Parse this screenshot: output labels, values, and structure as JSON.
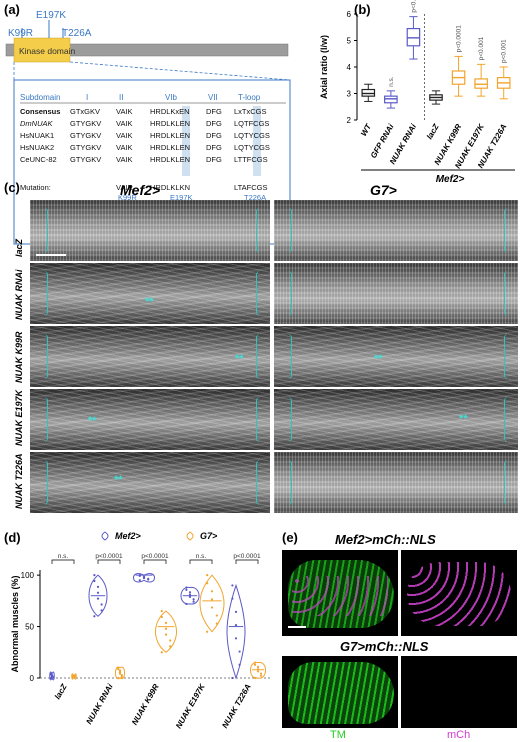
{
  "panels": {
    "a": "(a)",
    "b": "(b)",
    "c": "(c)",
    "d": "(d)",
    "e": "(e)"
  },
  "panel_a": {
    "mutations_top": [
      "E197K"
    ],
    "mutations_left": [
      "K99R"
    ],
    "mutations_right": [
      "T226A"
    ],
    "domain_label": "Kinase domain",
    "headers": [
      "Subdomain",
      "I",
      "II",
      "VIb",
      "VII",
      "T-loop"
    ],
    "rows": [
      {
        "name": "Consensus",
        "seq": [
          "GTxGKV",
          "VAIK",
          "HRDLKxEN",
          "DFG",
          "LxTxCGS"
        ]
      },
      {
        "name": "DmNUAK",
        "seq": [
          "GTYGKV",
          "VAIK",
          "HRDLKLEN",
          "DFG",
          "LQTFCGS"
        ]
      },
      {
        "name": "HsNUAK1",
        "seq": [
          "GTYGKV",
          "VAIK",
          "HRDLKLEN",
          "DFG",
          "LQTYCGS"
        ]
      },
      {
        "name": "HsNUAK2",
        "seq": [
          "GTYGKV",
          "VAIK",
          "HRDLKLEN",
          "DFG",
          "LQTYCGS"
        ]
      },
      {
        "name": "CeUNC-82",
        "seq": [
          "GTYGKV",
          "VAIK",
          "HRDLKLEN",
          "DFG",
          "LTTFCGS"
        ]
      }
    ],
    "mutation_row": {
      "name": "Mutation:",
      "seq": [
        "VAIR",
        "HRDLKLKN",
        "LTAFCGS"
      ]
    },
    "mutation_sublabels": [
      "K99R",
      "E197K",
      "T226A"
    ]
  },
  "chart_data": [
    {
      "type": "box",
      "panel": "b",
      "ylabel": "Axial ratio (l/w)",
      "ylim": [
        2,
        6
      ],
      "yticks": [
        2,
        3,
        4,
        5,
        6
      ],
      "group_label": "Mef2>",
      "categories": [
        "WT",
        "GFP RNAi",
        "NUAK RNAi",
        "lacZ",
        "NUAK K99R",
        "NUAK E197K",
        "NUAK T226A"
      ],
      "colors": [
        "#222222",
        "#5a5ac8",
        "#5a5ac8",
        "#222222",
        "#f2a42c",
        "#f2a42c",
        "#f2a42c"
      ],
      "annotations": [
        "",
        "n.s.",
        "p<0.0001",
        "",
        "p<0.0001",
        "p<0.001",
        "p<0.001"
      ],
      "boxes": [
        {
          "min": 2.7,
          "q1": 2.9,
          "median": 3.0,
          "q3": 3.15,
          "max": 3.35
        },
        {
          "min": 2.45,
          "q1": 2.65,
          "median": 2.8,
          "q3": 2.9,
          "max": 3.1
        },
        {
          "min": 4.3,
          "q1": 4.8,
          "median": 5.1,
          "q3": 5.45,
          "max": 5.9
        },
        {
          "min": 2.6,
          "q1": 2.75,
          "median": 2.85,
          "q3": 2.95,
          "max": 3.1
        },
        {
          "min": 2.9,
          "q1": 3.35,
          "median": 3.6,
          "q3": 3.85,
          "max": 4.4
        },
        {
          "min": 2.9,
          "q1": 3.2,
          "median": 3.35,
          "q3": 3.55,
          "max": 4.1
        },
        {
          "min": 2.8,
          "q1": 3.2,
          "median": 3.4,
          "q3": 3.6,
          "max": 4.0
        }
      ]
    },
    {
      "type": "violin",
      "panel": "d",
      "ylabel": "Abnormal muscles (%)",
      "ylim": [
        0,
        105
      ],
      "yticks": [
        0,
        50,
        100
      ],
      "categories": [
        "lacZ",
        "NUAK RNAi",
        "NUAK K99R",
        "NUAK E197K",
        "NUAK T226A"
      ],
      "series": [
        {
          "name": "Mef2>",
          "color": "#5a5ac8",
          "medians": [
            0,
            80,
            100,
            80,
            50
          ]
        },
        {
          "name": "G7>",
          "color": "#f2a42c",
          "medians": [
            0,
            0,
            50,
            75,
            8
          ]
        }
      ],
      "annotations": [
        "n.s.",
        "p<0.0001",
        "p<0.0001",
        "n.s.",
        "p<0.0001"
      ]
    }
  ],
  "panel_c": {
    "col_titles": [
      "Mef2>",
      "G7>"
    ],
    "row_labels": [
      "lacZ",
      "NUAK RNAi",
      "NUAK K99R",
      "NUAK E197K",
      "NUAK T226A"
    ],
    "star": "**"
  },
  "panel_e": {
    "titles": [
      "Mef2>mCh::NLS",
      "G7>mCh::NLS"
    ],
    "channels": [
      "TM",
      "mCh"
    ],
    "colors": {
      "tm": "#1fd11f",
      "mch": "#d13ad1"
    }
  }
}
